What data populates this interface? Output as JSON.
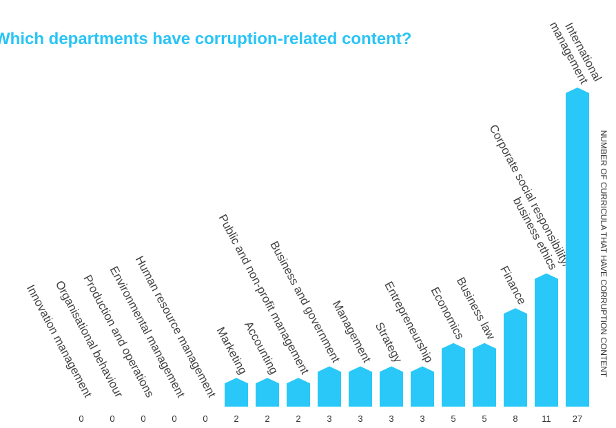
{
  "chart_data": {
    "type": "bar",
    "title": "Which departments have corruption-related content?",
    "y_label": "NUMBER OF CURRICULA THAT HAVE CORRUPTION CONTENT",
    "categories": [
      "Innovation management",
      "Organisational behaviour",
      "Production and operations",
      "Environmental management",
      "Human resource management",
      "Marketing",
      "Accounting",
      "Public and non-profit management",
      "Business and government",
      "Management",
      "Strategy",
      "Entrepreneurship",
      "Economics",
      "Business law",
      "Finance",
      [
        "Corporate social responsibility/",
        "business ethics"
      ],
      [
        "International",
        "management"
      ]
    ],
    "values": [
      0,
      0,
      0,
      0,
      0,
      2,
      2,
      2,
      3,
      3,
      3,
      3,
      5,
      5,
      8,
      11,
      27
    ],
    "color": "#29c8f8",
    "ylim": [
      0,
      27
    ]
  }
}
